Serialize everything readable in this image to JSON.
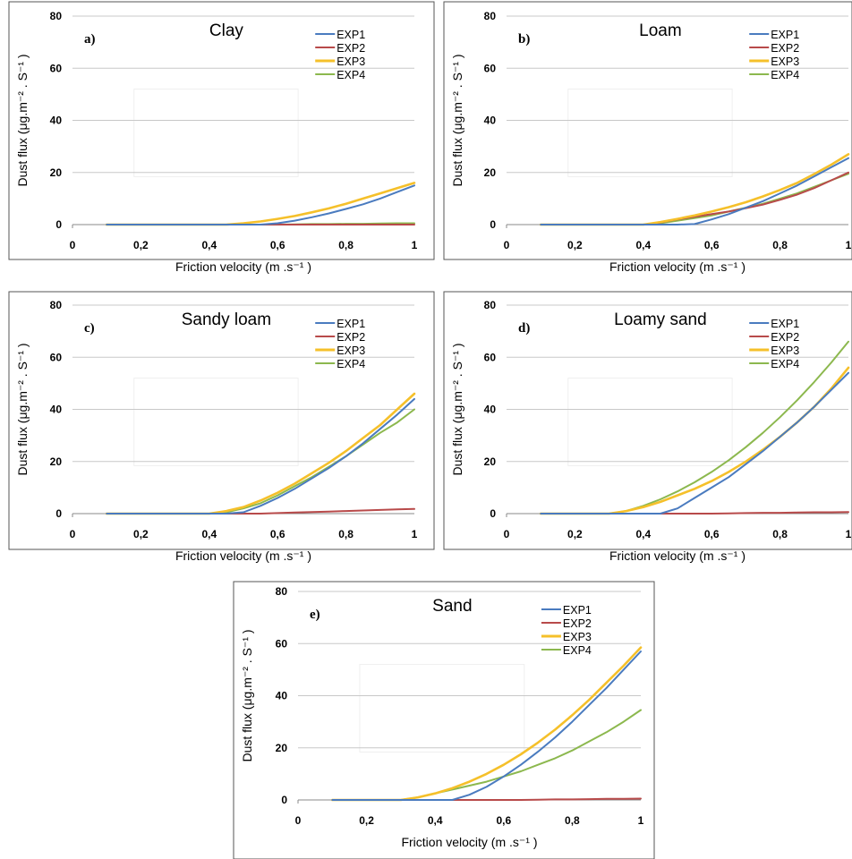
{
  "colors": {
    "EXP1": "#4a7bbf",
    "EXP2": "#b84a4a",
    "EXP3": "#f5c02a",
    "EXP4": "#8cb84e"
  },
  "legend_placement": "top-right",
  "chart_data": [
    {
      "type": "line",
      "letter": "a)",
      "title": "Clay",
      "xlabel": "Friction velocity (m .s⁻¹ )",
      "ylabel": "Dust flux (μg.m⁻² . S⁻¹ )",
      "xlim": [
        0,
        1
      ],
      "ylim": [
        0,
        80
      ],
      "xticks": [
        "0",
        "0,2",
        "0,4",
        "0,6",
        "0,8",
        "1"
      ],
      "yticks": [
        "0",
        "20",
        "40",
        "60",
        "80"
      ],
      "x": [
        0.1,
        0.2,
        0.3,
        0.4,
        0.45,
        0.5,
        0.55,
        0.6,
        0.65,
        0.7,
        0.75,
        0.8,
        0.85,
        0.9,
        0.95,
        1.0
      ],
      "series": [
        {
          "name": "EXP1",
          "values": [
            0,
            0,
            0,
            0,
            0,
            0,
            0,
            0.5,
            1.5,
            2.8,
            4.3,
            6,
            7.8,
            10,
            12.5,
            15
          ]
        },
        {
          "name": "EXP2",
          "values": [
            0,
            0,
            0,
            0,
            0,
            0,
            0,
            0,
            0,
            0,
            0,
            0,
            0,
            0,
            0,
            0
          ]
        },
        {
          "name": "EXP3",
          "values": [
            0,
            0,
            0,
            0,
            0,
            0.5,
            1.2,
            2.2,
            3.3,
            4.7,
            6.2,
            8,
            10,
            12,
            14,
            16
          ]
        },
        {
          "name": "EXP4",
          "values": [
            0,
            0,
            0,
            0,
            0,
            0,
            0,
            0,
            0.1,
            0.2,
            0.2,
            0.3,
            0.3,
            0.4,
            0.5,
            0.5
          ]
        }
      ]
    },
    {
      "type": "line",
      "letter": "b)",
      "title": "Loam",
      "xlabel": "Friction velocity (m .s⁻¹ )",
      "ylabel": "Dust flux (μg.m⁻² . S⁻¹ )",
      "xlim": [
        0,
        1
      ],
      "ylim": [
        0,
        80
      ],
      "xticks": [
        "0",
        "0,2",
        "0,4",
        "0,6",
        "0,8",
        "1"
      ],
      "yticks": [
        "0",
        "20",
        "40",
        "60",
        "80"
      ],
      "x": [
        0.1,
        0.2,
        0.3,
        0.4,
        0.45,
        0.5,
        0.55,
        0.6,
        0.65,
        0.7,
        0.75,
        0.8,
        0.85,
        0.9,
        0.95,
        1.0
      ],
      "series": [
        {
          "name": "EXP1",
          "values": [
            0,
            0,
            0,
            0,
            0,
            0,
            0.2,
            2,
            4,
            6.5,
            9,
            12,
            15,
            18.5,
            22,
            25.5
          ]
        },
        {
          "name": "EXP2",
          "values": [
            0,
            0,
            0,
            0,
            0.8,
            2,
            3,
            4,
            5,
            6.3,
            7.7,
            9.5,
            11.5,
            14,
            17,
            20
          ]
        },
        {
          "name": "EXP3",
          "values": [
            0,
            0,
            0,
            0,
            1,
            2.2,
            3.5,
            5,
            6.7,
            8.6,
            10.8,
            13.3,
            16,
            19.4,
            23,
            27
          ]
        },
        {
          "name": "EXP4",
          "values": [
            0,
            0,
            0,
            0,
            0.5,
            1.5,
            2.5,
            3.5,
            5,
            6.5,
            8,
            10,
            12,
            14.5,
            17,
            19.5
          ]
        }
      ]
    },
    {
      "type": "line",
      "letter": "c)",
      "title": "Sandy loam",
      "xlabel": "Friction velocity (m .s⁻¹ )",
      "ylabel": "Dust flux (μg.m⁻² . S⁻¹ )",
      "xlim": [
        0,
        1
      ],
      "ylim": [
        0,
        80
      ],
      "xticks": [
        "0",
        "0,2",
        "0,4",
        "0,6",
        "0,8",
        "1"
      ],
      "yticks": [
        "0",
        "20",
        "40",
        "60",
        "80"
      ],
      "x": [
        0.1,
        0.2,
        0.3,
        0.4,
        0.45,
        0.5,
        0.55,
        0.6,
        0.65,
        0.7,
        0.75,
        0.8,
        0.85,
        0.9,
        0.95,
        1.0
      ],
      "series": [
        {
          "name": "EXP1",
          "values": [
            0,
            0,
            0,
            0,
            0,
            0.5,
            3,
            6,
            9.5,
            13.5,
            17.5,
            22,
            27,
            32.5,
            38,
            44
          ]
        },
        {
          "name": "EXP2",
          "values": [
            0,
            0,
            0,
            0,
            0,
            0,
            0,
            0.2,
            0.4,
            0.6,
            0.8,
            1,
            1.2,
            1.4,
            1.6,
            1.8
          ]
        },
        {
          "name": "EXP3",
          "values": [
            0,
            0,
            0,
            0,
            1,
            2.5,
            5,
            8,
            11.5,
            15.5,
            19.5,
            24,
            29,
            34,
            40,
            46
          ]
        },
        {
          "name": "EXP4",
          "values": [
            0,
            0,
            0,
            0,
            0.5,
            2,
            4,
            7,
            10.5,
            14,
            18,
            22,
            26.5,
            31,
            35,
            40
          ]
        }
      ]
    },
    {
      "type": "line",
      "letter": "d)",
      "title": "Loamy sand",
      "xlabel": "Friction velocity (m .s⁻¹ )",
      "ylabel": "Dust flux (μg.m⁻² . S⁻¹ )",
      "xlim": [
        0,
        1
      ],
      "ylim": [
        0,
        80
      ],
      "xticks": [
        "0",
        "0,2",
        "0,4",
        "0,6",
        "0,8",
        "1"
      ],
      "yticks": [
        "0",
        "20",
        "40",
        "60",
        "80"
      ],
      "x": [
        0.1,
        0.2,
        0.3,
        0.35,
        0.4,
        0.45,
        0.5,
        0.55,
        0.6,
        0.65,
        0.7,
        0.75,
        0.8,
        0.85,
        0.9,
        0.95,
        1.0
      ],
      "series": [
        {
          "name": "EXP1",
          "values": [
            0,
            0,
            0,
            0,
            0,
            0,
            2,
            6,
            10,
            14,
            19,
            24,
            29.5,
            35,
            41,
            47.5,
            54
          ]
        },
        {
          "name": "EXP2",
          "values": [
            0,
            0,
            0,
            0,
            0,
            0,
            0,
            0,
            0,
            0.1,
            0.2,
            0.3,
            0.3,
            0.4,
            0.5,
            0.5,
            0.6
          ]
        },
        {
          "name": "EXP3",
          "values": [
            0,
            0,
            0,
            1,
            2.5,
            4.5,
            7,
            9.5,
            12.5,
            16,
            20,
            24.5,
            29.5,
            35,
            41,
            48,
            56
          ]
        },
        {
          "name": "EXP4",
          "values": [
            0,
            0,
            0,
            1,
            3,
            5.5,
            8.5,
            12,
            16,
            20.5,
            25.5,
            31,
            37,
            43.5,
            50.5,
            58,
            66
          ]
        }
      ]
    },
    {
      "type": "line",
      "letter": "e)",
      "title": "Sand",
      "xlabel": "Friction velocity (m .s⁻¹ )",
      "ylabel": "Dust flux (μg.m⁻² . S⁻¹ )",
      "xlim": [
        0,
        1
      ],
      "ylim": [
        0,
        80
      ],
      "xticks": [
        "0",
        "0,2",
        "0,4",
        "0,6",
        "0,8",
        "1"
      ],
      "yticks": [
        "0",
        "20",
        "40",
        "60",
        "80"
      ],
      "x": [
        0.1,
        0.2,
        0.3,
        0.35,
        0.4,
        0.45,
        0.5,
        0.55,
        0.6,
        0.65,
        0.7,
        0.75,
        0.8,
        0.85,
        0.9,
        0.95,
        1.0
      ],
      "series": [
        {
          "name": "EXP1",
          "values": [
            0,
            0,
            0,
            0,
            0,
            0,
            2,
            5,
            9,
            13.5,
            18.5,
            24,
            30,
            36.5,
            43,
            50,
            57
          ]
        },
        {
          "name": "EXP2",
          "values": [
            0,
            0,
            0,
            0,
            0,
            0,
            0,
            0,
            0,
            0,
            0.1,
            0.2,
            0.2,
            0.3,
            0.4,
            0.4,
            0.5
          ]
        },
        {
          "name": "EXP3",
          "values": [
            0,
            0,
            0,
            1,
            2.5,
            4.5,
            7,
            10,
            13.5,
            17.5,
            22,
            27,
            32.5,
            38.5,
            45,
            51.5,
            58.5
          ]
        },
        {
          "name": "EXP4",
          "values": [
            0,
            0,
            0,
            1,
            2.5,
            4,
            5.5,
            7,
            9,
            11,
            13.5,
            16,
            19,
            22.5,
            26,
            30,
            34.5
          ]
        }
      ]
    }
  ]
}
